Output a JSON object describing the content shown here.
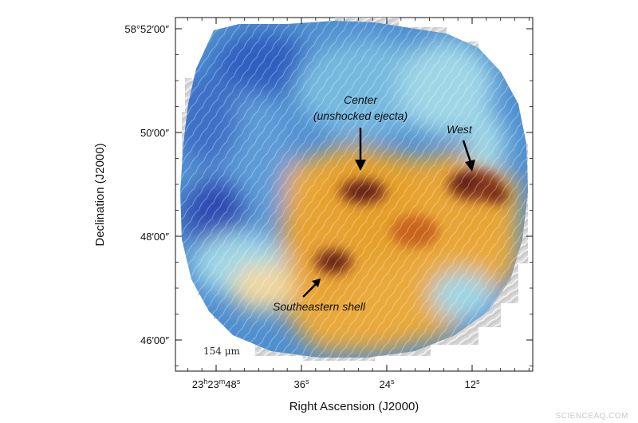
{
  "chart_data": {
    "type": "heatmap",
    "title": "",
    "xlabel": "Right Ascension (J2000)",
    "ylabel": "Declination (J2000)",
    "x_ticks": [
      {
        "ra_seconds": 48,
        "label": "23h23m48s"
      },
      {
        "ra_seconds": 36,
        "label": "36s"
      },
      {
        "ra_seconds": 24,
        "label": "24s"
      },
      {
        "ra_seconds": 12,
        "label": "12s"
      }
    ],
    "y_ticks": [
      {
        "dec_arcmin": 52,
        "label": "58°52′00″"
      },
      {
        "dec_arcmin": 50,
        "label": "50′00″"
      },
      {
        "dec_arcmin": 48,
        "label": "48′00″"
      },
      {
        "dec_arcmin": 46,
        "label": "46′00″"
      }
    ],
    "xlim_ra_seconds": [
      56,
      4
    ],
    "ylim_dec_arcmin": [
      45.5,
      52.3
    ],
    "band_label": "154 μm",
    "colormap": {
      "low": "#2f4bb3",
      "mid": "#9fd6e6",
      "high": "#e5a02a",
      "peak": "#5a1a14"
    },
    "annotations": [
      {
        "text_line1": "Center",
        "text_line2": "(unshocked ejecta)",
        "ra_seconds": 27,
        "dec_arcmin": 48.9
      },
      {
        "text_line1": "West",
        "ra_seconds": 12,
        "dec_arcmin": 49.1
      },
      {
        "text_line1": "Southeastern shell",
        "ra_seconds": 33,
        "dec_arcmin": 47.6
      }
    ]
  },
  "watermark": "SCIENCEAQ.COM"
}
